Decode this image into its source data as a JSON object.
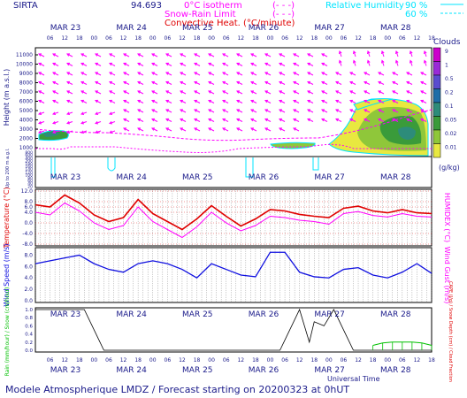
{
  "header": {
    "site": "SIRTA",
    "coords": "94.693",
    "isotherm_label": "0°C isotherm",
    "isotherm_legend": "(- - -)",
    "snow_rain_label": "Snow-Rain Limit",
    "snow_rain_legend": "(- - -)",
    "convective_label": "Convective Heat. (°C/minute)",
    "rh_label": "Relative Humidity",
    "rh_90": "90 %",
    "rh_60": "60 %"
  },
  "time_axis": {
    "days": [
      "MAR 23",
      "MAR 24",
      "MAR 25",
      "MAR 26",
      "MAR 27",
      "MAR 28"
    ],
    "hour_ticks": [
      "06",
      "12",
      "18",
      "00"
    ],
    "footer_title": "Universal Time"
  },
  "footer": {
    "text": "Modele Atmospherique LMDZ / Forecast starting on 20200323 at 0hUT"
  },
  "colors": {
    "magenta": "#ff00ff",
    "cyan": "#00e5ff",
    "red": "#e00000",
    "blue": "#1010e0",
    "green": "#00c000",
    "text": "#1a1a8a"
  },
  "chart_data": [
    {
      "type": "heatmap",
      "panel": "clouds",
      "ylabel": "Height (m a.s.l.)",
      "ylabel_low": "Up to 200 m a.g.l.",
      "yticks": [
        "11000",
        "10000",
        "9000",
        "8000",
        "7000",
        "6000",
        "5000",
        "4000",
        "3000",
        "2000",
        "1000",
        "800",
        "600",
        "400",
        "200",
        "180",
        "160",
        "140",
        "120",
        "100",
        "80",
        "60",
        "40",
        "20"
      ],
      "colorbar_title": "Clouds",
      "colorbar_unit": "(g/kg)",
      "colorbar_ticks": [
        "9",
        "1",
        "0.5",
        "0.2",
        "0.1",
        "0.05",
        "0.02",
        "0.01"
      ],
      "colorbar_colors": [
        "#cc00cc",
        "#9a2ad8",
        "#5a4cd0",
        "#1f6ea8",
        "#2d8c7a",
        "#3a9b3a",
        "#8fc73a",
        "#e8e840"
      ]
    },
    {
      "type": "line",
      "panel": "temperature",
      "ylabel": "Temperature (°C)",
      "y2label": "HUMIDEX (°C)",
      "yticks": [
        "12.0",
        "8.0",
        "6.0",
        "4.0",
        "0.0",
        "-4.0",
        "-8.0"
      ],
      "ylim": [
        -8,
        12
      ],
      "series": [
        {
          "name": "Temperature",
          "x": [
            0,
            6,
            12,
            18,
            24,
            30,
            36,
            42,
            48,
            54,
            60,
            66,
            72,
            78,
            84,
            90,
            96,
            102,
            108,
            114,
            120,
            126,
            132,
            138,
            144,
            150,
            156,
            162
          ],
          "values": [
            6.8,
            6,
            10.5,
            7.5,
            3,
            0.5,
            2,
            8.8,
            3.5,
            0.5,
            -2.5,
            1.5,
            6.5,
            2.5,
            -1.2,
            1.5,
            5,
            4.5,
            3.2,
            2.5,
            2,
            5.5,
            6.3,
            4.5,
            3.8,
            5,
            3.8,
            3.5
          ]
        },
        {
          "name": "HUMIDEX",
          "x": [
            0,
            6,
            12,
            18,
            24,
            30,
            36,
            42,
            48,
            54,
            60,
            66,
            72,
            78,
            84,
            90,
            96,
            102,
            108,
            114,
            120,
            126,
            132,
            138,
            144,
            150,
            156,
            162
          ],
          "values": [
            4,
            3,
            7.5,
            4.5,
            0,
            -2.5,
            -1,
            6,
            0.5,
            -2.5,
            -5.5,
            -1.5,
            4,
            0,
            -3,
            -1,
            2.5,
            2,
            1,
            0.5,
            -0.5,
            3.5,
            4.3,
            2.8,
            2.2,
            3.5,
            2.5,
            2.2
          ]
        }
      ]
    },
    {
      "type": "line",
      "panel": "wind",
      "ylabel": "Wind Speed (m/s)",
      "y2label": "Wind Gust (m/s)",
      "yticks": [
        "8.0",
        "6.0",
        "4.0",
        "2.0",
        "0.0"
      ],
      "ylim": [
        0,
        9
      ],
      "series": [
        {
          "name": "Wind Speed",
          "x": [
            0,
            6,
            12,
            18,
            24,
            30,
            36,
            42,
            48,
            54,
            60,
            66,
            72,
            78,
            84,
            90,
            96,
            102,
            108,
            114,
            120,
            126,
            132,
            138,
            144,
            150,
            156,
            162
          ],
          "values": [
            6.5,
            7,
            7.5,
            8,
            6.5,
            5.5,
            5,
            6.5,
            7,
            6.5,
            5.5,
            4,
            6.5,
            5.5,
            4.5,
            4.2,
            8.5,
            8.5,
            5,
            4.2,
            4,
            5.5,
            5.8,
            4.5,
            4,
            5,
            6.5,
            4.8
          ]
        }
      ]
    },
    {
      "type": "line",
      "panel": "precipitation",
      "ylabel": "Rain (mm/hour) / Snow (cm/hour)",
      "y2label": "CAPE (J/g) / Snow Depth (cm) / Cloud Fraction",
      "yticks": [
        "1.0",
        "0.8",
        "0.6",
        "0.4",
        "0.2",
        "0.0"
      ],
      "ylim": [
        0,
        1
      ],
      "series": [
        {
          "name": "Cloud Fraction",
          "x": [
            0,
            12,
            20,
            28,
            36,
            84,
            90,
            100,
            108,
            112,
            114,
            118,
            122,
            130,
            162
          ],
          "values": [
            1,
            1,
            1,
            0,
            0,
            0,
            0,
            0,
            1,
            0.2,
            0.7,
            0.6,
            1,
            0,
            0
          ]
        },
        {
          "name": "Rain",
          "x": [
            138,
            142,
            146,
            150,
            154,
            158,
            162
          ],
          "values": [
            0.12,
            0.18,
            0.2,
            0.2,
            0.2,
            0.18,
            0.12
          ]
        }
      ]
    }
  ]
}
